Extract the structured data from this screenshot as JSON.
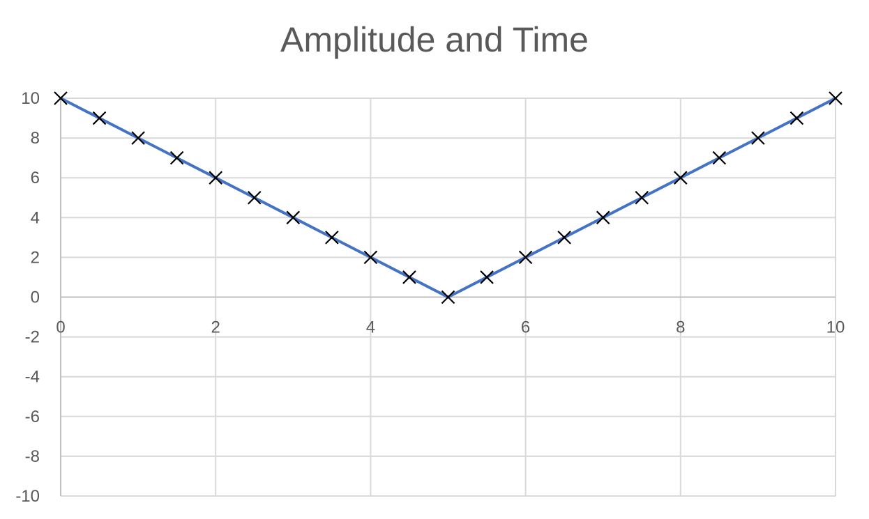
{
  "chart_data": {
    "type": "scatter",
    "title": "Amplitude and Time",
    "xlabel": "",
    "ylabel": "",
    "xlim": [
      0,
      10
    ],
    "ylim": [
      -10,
      10
    ],
    "x_ticks": [
      0,
      2,
      4,
      6,
      8,
      10
    ],
    "y_ticks": [
      10,
      8,
      6,
      4,
      2,
      0,
      -2,
      -4,
      -6,
      -8,
      -10
    ],
    "grid": true,
    "legend": "none",
    "series": [
      {
        "line_color": "#4472C4",
        "marker": "x",
        "marker_color": "#000000",
        "x": [
          0,
          0.5,
          1,
          1.5,
          2,
          2.5,
          3,
          3.5,
          4,
          4.5,
          5,
          5.5,
          6,
          6.5,
          7,
          7.5,
          8,
          8.5,
          9,
          9.5,
          10
        ],
        "y": [
          10,
          9,
          8,
          7,
          6,
          5,
          4,
          3,
          2,
          1,
          0,
          1,
          2,
          3,
          4,
          5,
          6,
          7,
          8,
          9,
          10
        ]
      }
    ]
  }
}
